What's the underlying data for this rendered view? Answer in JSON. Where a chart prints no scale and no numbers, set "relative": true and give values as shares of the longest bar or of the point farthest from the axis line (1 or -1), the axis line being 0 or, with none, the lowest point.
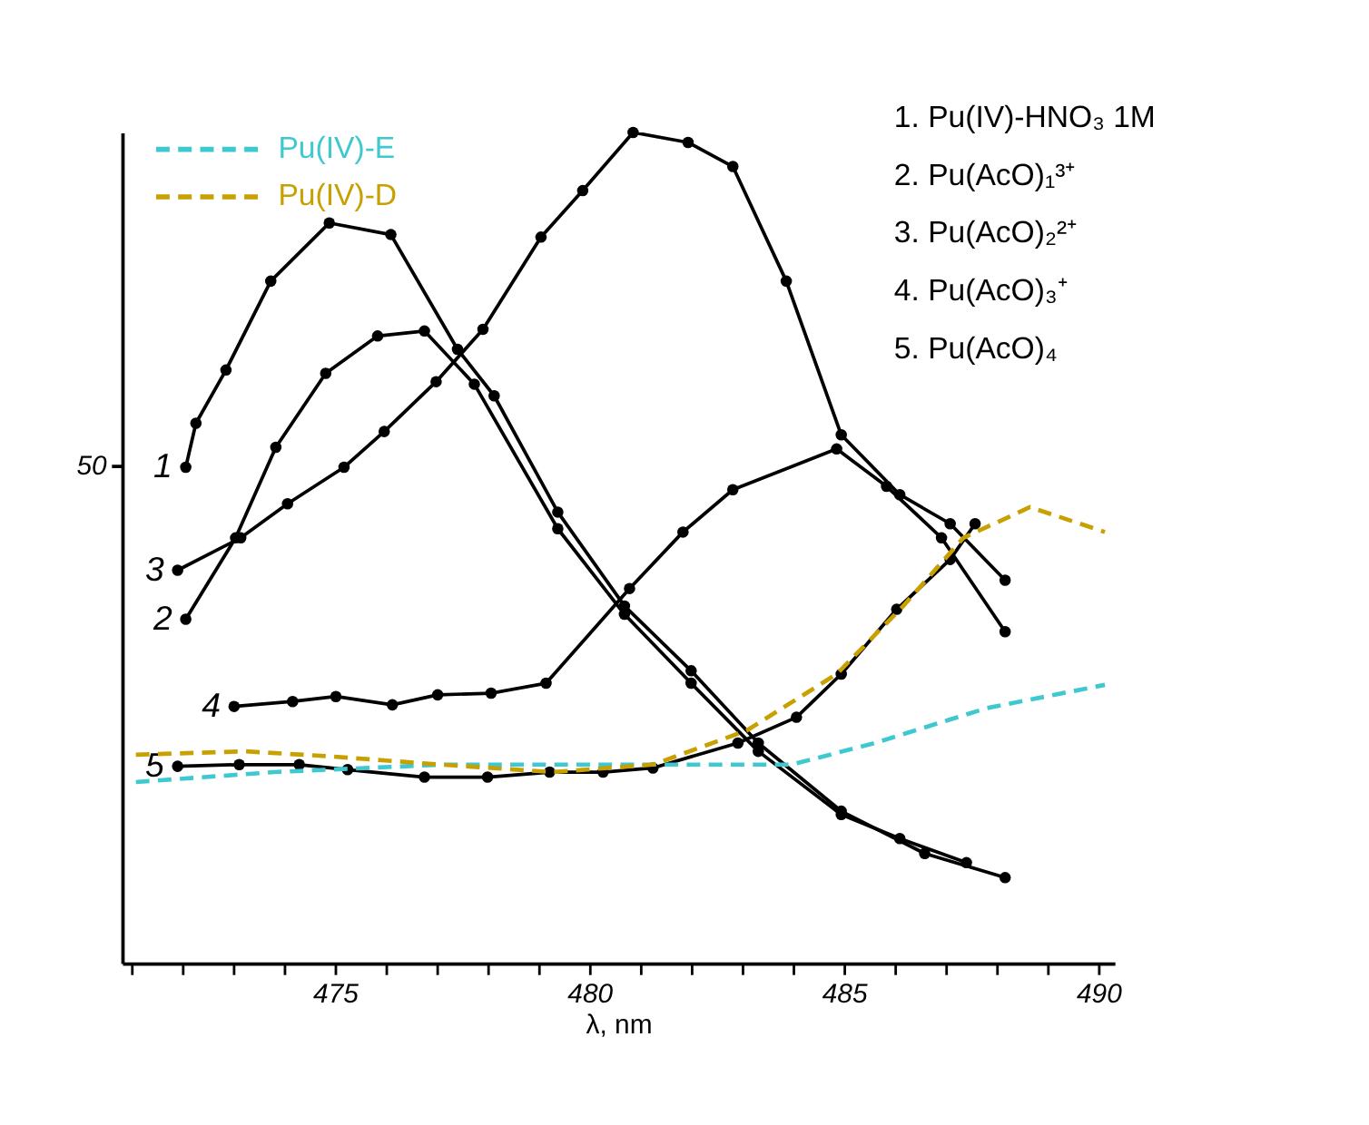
{
  "chart_data": {
    "type": "line",
    "relative": true,
    "xlabel": "λ, nm",
    "xlim": [
      470.8,
      490.3
    ],
    "xticks": [
      {
        "value": 471,
        "label": null
      },
      {
        "value": 472,
        "label": null
      },
      {
        "value": 473,
        "label": null
      },
      {
        "value": 474,
        "label": null
      },
      475,
      {
        "value": 476,
        "label": null
      },
      {
        "value": 477,
        "label": null
      },
      {
        "value": 478,
        "label": null
      },
      {
        "value": 479,
        "label": null
      },
      480,
      {
        "value": 481,
        "label": null
      },
      {
        "value": 482,
        "label": null
      },
      {
        "value": 483,
        "label": null
      },
      {
        "value": 484,
        "label": null
      },
      485,
      {
        "value": 486,
        "label": null
      },
      {
        "value": 487,
        "label": null
      },
      {
        "value": 488,
        "label": null
      },
      {
        "value": 489,
        "label": null
      },
      490
    ],
    "legend": "top left",
    "grid": false,
    "line_style": "solid",
    "series": [
      {
        "name": "1",
        "color": "#000000",
        "marker": "circle",
        "x": [
          472.05,
          472.25,
          472.84,
          473.72,
          474.87,
          476.08,
          477.39,
          478.11,
          479.36,
          480.67,
          481.98,
          483.3,
          484.93,
          486.57,
          488.15
        ],
        "values": [
          0.597,
          0.65,
          0.714,
          0.821,
          0.891,
          0.877,
          0.739,
          0.683,
          0.543,
          0.43,
          0.352,
          0.265,
          0.183,
          0.132,
          0.103
        ]
      },
      {
        "name": "2",
        "color": "#000000",
        "marker": "circle",
        "x": [
          472.05,
          473.03,
          473.82,
          474.8,
          475.82,
          476.74,
          477.72,
          479.36,
          480.67,
          481.98,
          483.3,
          484.93,
          486.08,
          487.39
        ],
        "values": [
          0.414,
          0.512,
          0.621,
          0.71,
          0.755,
          0.761,
          0.697,
          0.523,
          0.42,
          0.337,
          0.255,
          0.179,
          0.15,
          0.121
        ]
      },
      {
        "name": "3",
        "color": "#000000",
        "marker": "circle",
        "x": [
          471.89,
          473.13,
          474.05,
          475.16,
          475.95,
          476.97,
          477.89,
          479.03,
          479.85,
          480.84,
          481.92,
          482.8,
          483.85,
          484.93,
          486.08,
          487.07,
          488.15
        ],
        "values": [
          0.473,
          0.512,
          0.553,
          0.597,
          0.64,
          0.7,
          0.763,
          0.874,
          0.93,
          1.0,
          0.988,
          0.959,
          0.821,
          0.636,
          0.564,
          0.529,
          0.461
        ]
      },
      {
        "name": "4",
        "color": "#000000",
        "marker": "circle",
        "x": [
          473.0,
          474.15,
          475.0,
          476.11,
          477.0,
          478.05,
          479.13,
          480.77,
          481.82,
          482.8,
          484.84,
          485.82,
          486.9,
          488.15
        ],
        "values": [
          0.309,
          0.315,
          0.321,
          0.311,
          0.323,
          0.325,
          0.337,
          0.451,
          0.519,
          0.57,
          0.619,
          0.574,
          0.512,
          0.399
        ]
      },
      {
        "name": "5",
        "color": "#000000",
        "marker": "circle",
        "x": [
          471.89,
          473.1,
          474.28,
          475.23,
          476.74,
          477.98,
          479.2,
          480.25,
          481.23,
          482.9,
          484.05,
          484.93,
          486.02,
          487.07,
          487.56
        ],
        "values": [
          0.237,
          0.239,
          0.239,
          0.233,
          0.224,
          0.224,
          0.23,
          0.23,
          0.235,
          0.265,
          0.296,
          0.348,
          0.426,
          0.486,
          0.529
        ]
      },
      {
        "name": "Pu(IV)-E",
        "color": "#3ec8d0",
        "line_style": "dashed",
        "x": [
          471.07,
          473.79,
          477.07,
          479.03,
          483.95,
          485.59,
          487.79,
          490.11
        ],
        "values": [
          0.218,
          0.23,
          0.239,
          0.239,
          0.239,
          0.265,
          0.307,
          0.335
        ]
      },
      {
        "name": "Pu(IV)-D",
        "color": "#c8a000",
        "line_style": "dashed",
        "x": [
          471.07,
          473.23,
          474.87,
          477.07,
          479.26,
          481.23,
          483.07,
          484.84,
          486.15,
          487.33,
          488.64,
          490.11
        ],
        "values": [
          0.251,
          0.255,
          0.249,
          0.239,
          0.23,
          0.239,
          0.28,
          0.348,
          0.43,
          0.512,
          0.549,
          0.519
        ]
      }
    ],
    "annotations": [
      "50",
      "1.  Pu(IV)-HNO₃ 1M",
      "2.  Pu(AcO)₁³⁺",
      "3.  Pu(AcO)₂²⁺",
      "4.  Pu(AcO)₃⁺",
      "5.  Pu(AcO)₄"
    ]
  }
}
